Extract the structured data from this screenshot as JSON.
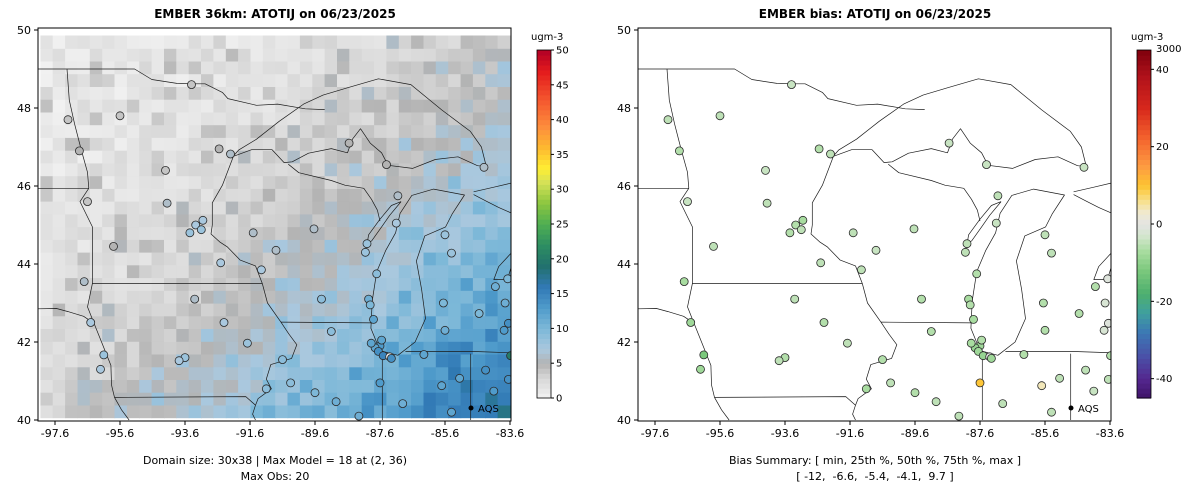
{
  "page_background": "#ffffff",
  "chart_data": [
    {
      "type": "scatter",
      "subtype": "spatial-map-with-model-raster",
      "title": "EMBER 36km: ATOTIJ on 06/23/2025",
      "x_ticks": [
        -97.6,
        -95.6,
        -93.6,
        -91.6,
        -89.6,
        -87.6,
        -85.6,
        -83.6
      ],
      "y_ticks": [
        40,
        42,
        44,
        46,
        48,
        50
      ],
      "xlim": [
        -98.1,
        -83.55
      ],
      "ylim": [
        40.0,
        50.05
      ],
      "grid": false,
      "legend": {
        "label": "AQS"
      },
      "caption": [
        "Domain size: 30x38 | Max Model = 18 at (2, 36)",
        "Max Obs: 20"
      ],
      "raster": {
        "rows": 30,
        "cols": 38,
        "max_value": 18,
        "max_cell": "(2, 36)",
        "pattern": "model concentration field: ~0-4 ugm-3 (light/medium gray) over the northwest, increasing to 10-18 ugm-3 (blue to dark blue) toward the southeast corner (Indiana/Ohio/Lake Erie)"
      },
      "colorbar": {
        "title": "ugm-3",
        "range": [
          0,
          50
        ],
        "ticks": [
          0,
          5,
          10,
          15,
          20,
          25,
          30,
          35,
          40,
          45,
          50
        ],
        "stops": [
          [
            0,
            "#f2f2f2"
          ],
          [
            3,
            "#d6d6d6"
          ],
          [
            5,
            "#b3b3b3"
          ],
          [
            7,
            "#aac8de"
          ],
          [
            10,
            "#7db8d8"
          ],
          [
            13,
            "#4f9bcb"
          ],
          [
            16,
            "#3179b5"
          ],
          [
            19,
            "#22716d"
          ],
          [
            22,
            "#2d8e62"
          ],
          [
            25,
            "#4fae52"
          ],
          [
            28,
            "#8cc63f"
          ],
          [
            31,
            "#d4e157"
          ],
          [
            33,
            "#ffee33"
          ],
          [
            36,
            "#fdb930"
          ],
          [
            39,
            "#fd8d3c"
          ],
          [
            43,
            "#f4552e"
          ],
          [
            47,
            "#e31a1c"
          ],
          [
            50,
            "#b10026"
          ]
        ]
      },
      "points_note": "AQS observation sites, positions/values estimated from image; columns [lon, lat, obs ugm-3]",
      "points": [
        [
          -97.2,
          47.7,
          4
        ],
        [
          -96.85,
          46.9,
          5
        ],
        [
          -95.6,
          47.8,
          4
        ],
        [
          -93.4,
          48.6,
          4
        ],
        [
          -92.2,
          46.82,
          6
        ],
        [
          -92.55,
          46.95,
          5
        ],
        [
          -94.2,
          46.4,
          4
        ],
        [
          -96.6,
          45.6,
          4
        ],
        [
          -94.15,
          45.56,
          6
        ],
        [
          -93.27,
          45.0,
          7
        ],
        [
          -93.05,
          45.12,
          7
        ],
        [
          -93.1,
          44.88,
          8
        ],
        [
          -93.45,
          44.8,
          8
        ],
        [
          -92.5,
          44.03,
          7
        ],
        [
          -95.8,
          44.45,
          5
        ],
        [
          -96.7,
          43.55,
          6
        ],
        [
          -96.5,
          42.5,
          7
        ],
        [
          -96.2,
          41.3,
          7
        ],
        [
          -96.1,
          41.67,
          8
        ],
        [
          -93.6,
          41.6,
          8
        ],
        [
          -93.78,
          41.52,
          7
        ],
        [
          -92.4,
          42.5,
          7
        ],
        [
          -91.68,
          41.97,
          8
        ],
        [
          -90.6,
          41.55,
          9
        ],
        [
          -91.1,
          40.8,
          9
        ],
        [
          -93.3,
          43.1,
          6
        ],
        [
          -91.25,
          43.85,
          7
        ],
        [
          -91.5,
          44.8,
          6
        ],
        [
          -89.4,
          43.1,
          9
        ],
        [
          -87.95,
          43.1,
          11
        ],
        [
          -87.9,
          42.95,
          10
        ],
        [
          -88.05,
          44.3,
          8
        ],
        [
          -88.0,
          44.52,
          8
        ],
        [
          -89.63,
          44.9,
          6
        ],
        [
          -90.8,
          44.35,
          6
        ],
        [
          -87.7,
          43.75,
          9
        ],
        [
          -87.8,
          42.58,
          12
        ],
        [
          -88.55,
          47.1,
          5
        ],
        [
          -87.4,
          46.55,
          5
        ],
        [
          -87.05,
          45.75,
          6
        ],
        [
          -84.4,
          46.48,
          6
        ],
        [
          -85.6,
          44.75,
          8
        ],
        [
          -85.4,
          44.28,
          8
        ],
        [
          -85.65,
          43.0,
          10
        ],
        [
          -84.55,
          42.73,
          10
        ],
        [
          -84.05,
          43.42,
          11
        ],
        [
          -83.75,
          43.0,
          11
        ],
        [
          -83.67,
          43.62,
          10
        ],
        [
          -85.6,
          42.3,
          11
        ],
        [
          -83.78,
          42.3,
          13
        ],
        [
          -83.65,
          42.48,
          14
        ],
        [
          -87.6,
          41.9,
          13
        ],
        [
          -87.75,
          41.85,
          12
        ],
        [
          -87.87,
          41.97,
          12
        ],
        [
          -87.65,
          41.76,
          14
        ],
        [
          -87.55,
          42.05,
          12
        ],
        [
          -87.5,
          41.65,
          15
        ],
        [
          -87.3,
          41.62,
          1
        ],
        [
          -87.25,
          41.58,
          14
        ],
        [
          -86.25,
          41.68,
          12
        ],
        [
          -85.15,
          41.07,
          12
        ],
        [
          -86.9,
          40.42,
          11
        ],
        [
          -85.4,
          40.2,
          12
        ],
        [
          -83.58,
          41.65,
          20
        ],
        [
          -83.65,
          41.04,
          14
        ],
        [
          -84.1,
          40.74,
          13
        ],
        [
          -84.35,
          41.28,
          14
        ],
        [
          -89.1,
          42.27,
          9
        ],
        [
          -89.6,
          40.7,
          10
        ],
        [
          -88.95,
          40.47,
          11
        ],
        [
          -88.25,
          40.1,
          11
        ],
        [
          -90.35,
          40.95,
          9
        ],
        [
          -87.6,
          40.95,
          13
        ],
        [
          -87.1,
          45.05,
          7
        ],
        [
          -85.7,
          40.88,
          12
        ]
      ]
    },
    {
      "type": "scatter",
      "subtype": "spatial-map",
      "title": "EMBER bias: ATOTIJ on 06/23/2025",
      "x_ticks": [
        -97.6,
        -95.6,
        -93.6,
        -91.6,
        -89.6,
        -87.6,
        -85.6,
        -83.6
      ],
      "y_ticks": [
        40,
        42,
        44,
        46,
        48,
        50
      ],
      "xlim": [
        -98.1,
        -83.55
      ],
      "ylim": [
        40.0,
        50.05
      ],
      "grid": false,
      "legend": {
        "label": "AQS"
      },
      "caption": [
        "Bias Summary: [ min, 25th %, 50th %, 75th %, max ]",
        "[ -12,  -6.6,  -5.4,  -4.1,  9.7 ]"
      ],
      "bias_summary": {
        "min": -12,
        "p25": -6.6,
        "p50": -5.4,
        "p75": -4.1,
        "max": 9.7
      },
      "colorbar": {
        "title": "ugm-3",
        "range": [
          -45,
          45
        ],
        "ticks": [
          -40,
          -20,
          0,
          20,
          40
        ],
        "top_label": "3000",
        "stops": [
          [
            -45,
            "#3f1368"
          ],
          [
            -40,
            "#54278f"
          ],
          [
            -34,
            "#4a52a8"
          ],
          [
            -28,
            "#3c78b4"
          ],
          [
            -23,
            "#3f9f9f"
          ],
          [
            -18,
            "#4daf6e"
          ],
          [
            -12,
            "#7bc87c"
          ],
          [
            -7,
            "#a8dca0"
          ],
          [
            -3,
            "#d3e6cd"
          ],
          [
            0,
            "#e3e3e3"
          ],
          [
            3,
            "#f0ead0"
          ],
          [
            6,
            "#f7e08c"
          ],
          [
            10,
            "#fdc431"
          ],
          [
            15,
            "#fd9b42"
          ],
          [
            22,
            "#f4652e"
          ],
          [
            30,
            "#d7281c"
          ],
          [
            38,
            "#b2121b"
          ],
          [
            45,
            "#7f000d"
          ]
        ]
      },
      "points_note": "AQS observation sites, positions/values estimated from image; columns [lon, lat, bias ugm-3]",
      "points": [
        [
          -97.2,
          47.7,
          -5
        ],
        [
          -96.85,
          46.9,
          -6
        ],
        [
          -95.6,
          47.8,
          -5
        ],
        [
          -93.4,
          48.6,
          -4
        ],
        [
          -92.2,
          46.82,
          -5
        ],
        [
          -92.55,
          46.95,
          -6
        ],
        [
          -94.2,
          46.4,
          -4
        ],
        [
          -96.6,
          45.6,
          -4
        ],
        [
          -94.15,
          45.56,
          -5
        ],
        [
          -93.27,
          45.0,
          -6
        ],
        [
          -93.05,
          45.12,
          -7
        ],
        [
          -93.1,
          44.88,
          -5
        ],
        [
          -93.45,
          44.8,
          -6
        ],
        [
          -92.5,
          44.03,
          -5
        ],
        [
          -95.8,
          44.45,
          -5
        ],
        [
          -96.7,
          43.55,
          -7
        ],
        [
          -96.5,
          42.5,
          -8
        ],
        [
          -96.2,
          41.3,
          -8
        ],
        [
          -96.1,
          41.67,
          -12
        ],
        [
          -93.6,
          41.6,
          -6
        ],
        [
          -93.78,
          41.52,
          -5
        ],
        [
          -92.4,
          42.5,
          -6
        ],
        [
          -91.68,
          41.97,
          -5
        ],
        [
          -90.6,
          41.55,
          -6
        ],
        [
          -91.1,
          40.8,
          -7
        ],
        [
          -93.3,
          43.1,
          -5
        ],
        [
          -91.25,
          43.85,
          -5
        ],
        [
          -91.5,
          44.8,
          -5
        ],
        [
          -89.4,
          43.1,
          -6
        ],
        [
          -87.95,
          43.1,
          -7
        ],
        [
          -87.9,
          42.95,
          -6
        ],
        [
          -88.05,
          44.3,
          -5
        ],
        [
          -88.0,
          44.52,
          -5
        ],
        [
          -89.63,
          44.9,
          -5
        ],
        [
          -90.8,
          44.35,
          -4
        ],
        [
          -87.7,
          43.75,
          -6
        ],
        [
          -87.8,
          42.58,
          -7
        ],
        [
          -88.55,
          47.1,
          -4
        ],
        [
          -87.4,
          46.55,
          -4
        ],
        [
          -87.05,
          45.75,
          -5
        ],
        [
          -84.4,
          46.48,
          -4
        ],
        [
          -85.6,
          44.75,
          -5
        ],
        [
          -85.4,
          44.28,
          -5
        ],
        [
          -85.65,
          43.0,
          -6
        ],
        [
          -84.55,
          42.73,
          -6
        ],
        [
          -84.05,
          43.42,
          -6
        ],
        [
          -83.75,
          43.0,
          -2
        ],
        [
          -83.67,
          43.62,
          -1
        ],
        [
          -85.6,
          42.3,
          -6
        ],
        [
          -83.78,
          42.3,
          -2
        ],
        [
          -83.65,
          42.48,
          -1
        ],
        [
          -87.6,
          41.9,
          -8
        ],
        [
          -87.75,
          41.85,
          -9
        ],
        [
          -87.87,
          41.97,
          -7
        ],
        [
          -87.65,
          41.76,
          -8
        ],
        [
          -87.55,
          42.05,
          -6
        ],
        [
          -87.5,
          41.65,
          -9
        ],
        [
          -87.3,
          41.62,
          0
        ],
        [
          -87.25,
          41.58,
          -8
        ],
        [
          -86.25,
          41.68,
          -6
        ],
        [
          -85.15,
          41.07,
          -5
        ],
        [
          -86.9,
          40.42,
          -5
        ],
        [
          -85.4,
          40.2,
          -5
        ],
        [
          -83.58,
          41.65,
          -6
        ],
        [
          -83.65,
          41.04,
          -5
        ],
        [
          -84.1,
          40.74,
          -4
        ],
        [
          -84.35,
          41.28,
          -5
        ],
        [
          -89.1,
          42.27,
          -6
        ],
        [
          -89.6,
          40.7,
          -6
        ],
        [
          -88.95,
          40.47,
          -5
        ],
        [
          -88.25,
          40.1,
          -5
        ],
        [
          -90.35,
          40.95,
          -5
        ],
        [
          -87.6,
          40.95,
          9.7
        ],
        [
          -87.1,
          45.05,
          -4
        ],
        [
          -85.7,
          40.88,
          4
        ]
      ]
    }
  ]
}
